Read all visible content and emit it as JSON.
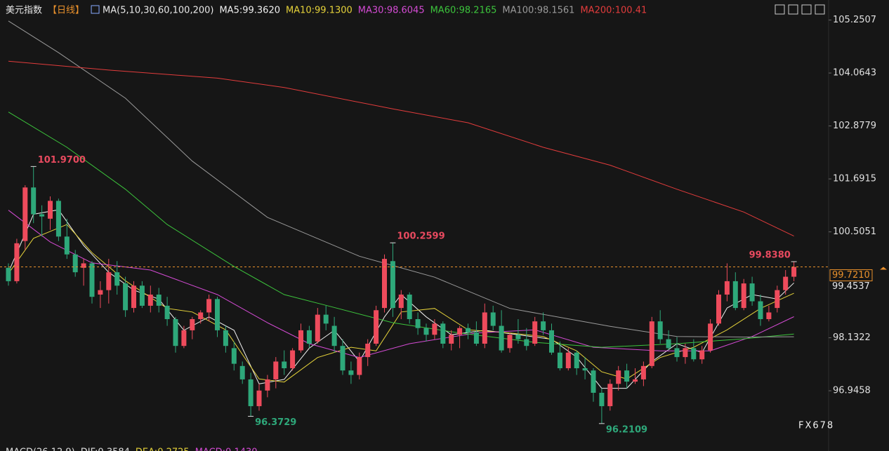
{
  "chart_data": {
    "type": "candlestick",
    "title": "美元指数",
    "period": "【日线】",
    "ma_title": "MA(5,10,30,60,100,200)",
    "ylim": [
      95.8,
      105.7
    ],
    "yticks": [
      96.9458,
      98.1322,
      100.5051,
      101.6915,
      102.8779,
      104.0643,
      105.2507
    ],
    "last_price": {
      "value": 99.721,
      "label": "99.7210"
    },
    "side_label": 99.4537,
    "open": [
      99.7,
      99.4,
      100.3,
      101.5,
      100.9,
      100.8,
      101.2,
      100.4,
      100.0,
      99.7,
      99.8,
      99.1,
      99.2,
      99.6,
      99.35,
      98.8,
      99.3,
      98.85,
      99.1,
      98.85,
      98.55,
      97.95,
      98.3,
      98.55,
      98.7,
      99.0,
      98.3,
      97.9,
      97.5,
      97.2,
      96.6,
      96.95,
      97.2,
      97.6,
      97.45,
      97.85,
      98.3,
      98.05,
      98.65,
      98.4,
      97.95,
      97.4,
      97.3,
      97.7,
      98.0,
      98.8,
      99.85,
      98.8,
      99.1,
      98.55,
      98.35,
      98.2,
      98.45,
      98.0,
      98.2,
      98.35,
      98.25,
      98.0,
      98.7,
      98.4,
      97.9,
      98.2,
      98.1,
      98.0,
      98.5,
      98.3,
      97.8,
      97.45,
      97.8,
      97.45,
      97.4,
      96.9,
      96.6,
      97.1,
      97.4,
      97.15,
      97.2,
      97.5,
      98.5,
      98.1,
      97.9,
      97.7,
      97.9,
      97.65,
      97.85,
      98.45,
      99.1,
      99.4,
      98.8,
      99.35,
      98.95,
      98.55,
      98.8,
      99.2,
      99.5
    ],
    "high": [
      99.8,
      100.35,
      101.55,
      101.97,
      101.1,
      101.3,
      101.25,
      100.8,
      100.1,
      99.9,
      99.85,
      99.4,
      99.9,
      99.85,
      99.5,
      99.4,
      99.4,
      99.3,
      99.25,
      99.05,
      98.6,
      98.4,
      98.6,
      98.75,
      99.1,
      99.05,
      98.4,
      98.05,
      97.6,
      97.35,
      97.1,
      97.3,
      97.7,
      97.85,
      97.9,
      98.45,
      98.4,
      98.8,
      98.85,
      98.6,
      98.1,
      97.6,
      97.8,
      98.1,
      98.85,
      100.0,
      100.2599,
      99.2,
      99.15,
      98.7,
      98.45,
      98.55,
      98.5,
      98.3,
      98.4,
      98.45,
      98.5,
      98.9,
      98.85,
      98.75,
      98.25,
      98.55,
      98.35,
      98.6,
      98.7,
      98.45,
      98.05,
      97.9,
      97.85,
      97.7,
      97.45,
      97.0,
      97.2,
      97.5,
      97.55,
      97.45,
      97.6,
      98.6,
      98.75,
      98.3,
      98.15,
      98.0,
      98.1,
      97.95,
      98.55,
      99.2,
      99.8,
      99.6,
      99.45,
      99.5,
      99.1,
      98.85,
      99.3,
      99.65,
      99.838
    ],
    "low": [
      99.3,
      99.35,
      100.1,
      100.7,
      100.4,
      100.55,
      100.3,
      99.9,
      99.5,
      99.3,
      98.9,
      98.8,
      98.9,
      99.1,
      98.6,
      98.7,
      98.8,
      98.7,
      98.7,
      98.4,
      97.8,
      97.9,
      98.1,
      98.45,
      98.5,
      98.15,
      97.8,
      97.4,
      97.1,
      96.3729,
      96.5,
      96.8,
      97.0,
      97.3,
      97.4,
      97.8,
      97.9,
      98.0,
      98.3,
      97.8,
      97.3,
      97.1,
      97.2,
      97.5,
      97.95,
      98.7,
      98.6,
      98.55,
      98.45,
      98.2,
      98.05,
      98.1,
      97.9,
      97.85,
      97.9,
      98.1,
      97.95,
      97.9,
      98.3,
      97.8,
      97.8,
      98.0,
      97.85,
      97.95,
      98.2,
      97.75,
      97.4,
      97.4,
      97.3,
      97.2,
      96.7,
      96.2109,
      96.5,
      96.95,
      97.0,
      97.1,
      97.05,
      97.45,
      98.0,
      97.85,
      97.6,
      97.55,
      97.6,
      97.55,
      97.8,
      98.4,
      98.95,
      98.75,
      98.75,
      98.85,
      98.4,
      98.5,
      98.7,
      99.1,
      99.4
    ],
    "close": [
      99.4,
      100.25,
      101.5,
      100.9,
      100.85,
      101.2,
      100.4,
      100.0,
      99.6,
      99.8,
      99.05,
      99.2,
      99.6,
      99.3,
      98.75,
      99.3,
      98.85,
      99.1,
      98.85,
      98.55,
      97.95,
      98.3,
      98.55,
      98.7,
      99.0,
      98.3,
      97.95,
      97.55,
      97.2,
      96.6,
      96.95,
      97.2,
      97.6,
      97.45,
      97.85,
      98.3,
      98.0,
      98.65,
      98.45,
      97.95,
      97.4,
      97.3,
      97.7,
      98.0,
      98.75,
      99.9,
      98.8,
      99.1,
      98.55,
      98.35,
      98.2,
      98.45,
      98.0,
      98.2,
      98.35,
      98.25,
      98.0,
      98.7,
      98.4,
      97.85,
      98.2,
      98.1,
      97.95,
      98.5,
      98.3,
      97.8,
      97.45,
      97.8,
      97.45,
      97.4,
      96.9,
      96.6,
      97.1,
      97.4,
      97.15,
      97.2,
      97.5,
      98.5,
      98.1,
      97.9,
      97.7,
      97.9,
      97.65,
      97.85,
      98.45,
      99.1,
      99.4,
      98.8,
      99.35,
      98.95,
      98.55,
      98.7,
      99.2,
      99.5,
      99.72
    ],
    "up_color": "#ee4b5c",
    "down_color": "#2ea87a",
    "annotations": [
      {
        "index": 3,
        "value": 101.97,
        "label": "101.9700"
      },
      {
        "index": 29,
        "value": 96.3729
      },
      {
        "index": 46,
        "value": 100.2599
      },
      {
        "index": 71,
        "value": 96.2109
      },
      {
        "index": 94,
        "value": 99.838,
        "label": "99.8380"
      }
    ],
    "series": [
      {
        "name": "MA5:99.3620",
        "color": "#f0f0f0",
        "x": [
          0,
          3,
          6,
          9,
          12,
          15,
          18,
          21,
          24,
          27,
          30,
          33,
          36,
          39,
          42,
          45,
          47,
          50,
          53,
          57,
          61,
          65,
          68,
          71,
          74,
          77,
          80,
          83,
          86,
          89,
          92,
          94
        ],
        "values": [
          99.6,
          100.9,
          101.0,
          100.2,
          99.6,
          99.2,
          99.0,
          98.3,
          98.6,
          98.3,
          97.1,
          97.2,
          97.9,
          98.3,
          97.6,
          98.6,
          99.1,
          98.6,
          98.2,
          98.3,
          98.2,
          98.1,
          97.7,
          97.0,
          97.0,
          97.6,
          98.0,
          97.8,
          98.8,
          99.1,
          99.0,
          99.362
        ]
      },
      {
        "name": "MA10:99.1300",
        "color": "#e5d23a",
        "x": [
          0,
          3,
          7,
          10,
          14,
          19,
          22,
          26,
          30,
          33,
          37,
          41,
          44,
          47,
          51,
          55,
          60,
          64,
          68,
          71,
          74,
          78,
          82,
          86,
          90,
          94
        ],
        "values": [
          99.57,
          100.36,
          100.67,
          100.04,
          99.41,
          98.79,
          98.71,
          98.31,
          97.21,
          97.14,
          97.69,
          97.92,
          97.84,
          98.71,
          98.79,
          98.31,
          98.24,
          98.16,
          97.84,
          97.37,
          97.21,
          97.69,
          97.92,
          98.31,
          98.79,
          99.13
        ]
      },
      {
        "name": "MA30:98.6045",
        "color": "#d44bd4",
        "x": [
          0,
          5,
          10,
          17,
          25,
          31,
          36,
          42,
          48,
          56,
          63,
          70,
          78,
          84,
          89,
          94
        ],
        "values": [
          100.99,
          100.28,
          99.81,
          99.65,
          99.1,
          98.47,
          98.0,
          97.69,
          98.0,
          98.24,
          98.31,
          97.92,
          97.84,
          97.84,
          98.16,
          98.6045
        ]
      },
      {
        "name": "MA60:98.2165",
        "color": "#3cc43c",
        "x": [
          0,
          7,
          14,
          19,
          27,
          33,
          38,
          46,
          54,
          63,
          71,
          80,
          88,
          94
        ],
        "values": [
          103.19,
          102.4,
          101.46,
          100.67,
          99.73,
          99.1,
          98.86,
          98.47,
          98.24,
          98.03,
          97.92,
          98.0,
          98.11,
          98.2165
        ]
      },
      {
        "name": "MA100:98.1561",
        "color": "#9a9a9a",
        "x": [
          0,
          6,
          14,
          22,
          31,
          42,
          51,
          60,
          72,
          80,
          88,
          94
        ],
        "values": [
          105.23,
          104.52,
          103.5,
          102.09,
          100.83,
          99.96,
          99.49,
          98.79,
          98.39,
          98.16,
          98.15,
          98.1561
        ]
      },
      {
        "name": "MA200:100.41",
        "color": "#e23c3c",
        "x": [
          0,
          12,
          25,
          33,
          46,
          55,
          64,
          72,
          80,
          88,
          94
        ],
        "values": [
          104.33,
          104.13,
          103.95,
          103.74,
          103.26,
          102.95,
          102.4,
          102.0,
          101.46,
          100.95,
          100.41
        ]
      }
    ],
    "footer": [
      "MACD(26,12,9)",
      "DIF:0.3584",
      "DEA:0.2725",
      "MACD:0.1430"
    ],
    "watermark": "FX678"
  }
}
